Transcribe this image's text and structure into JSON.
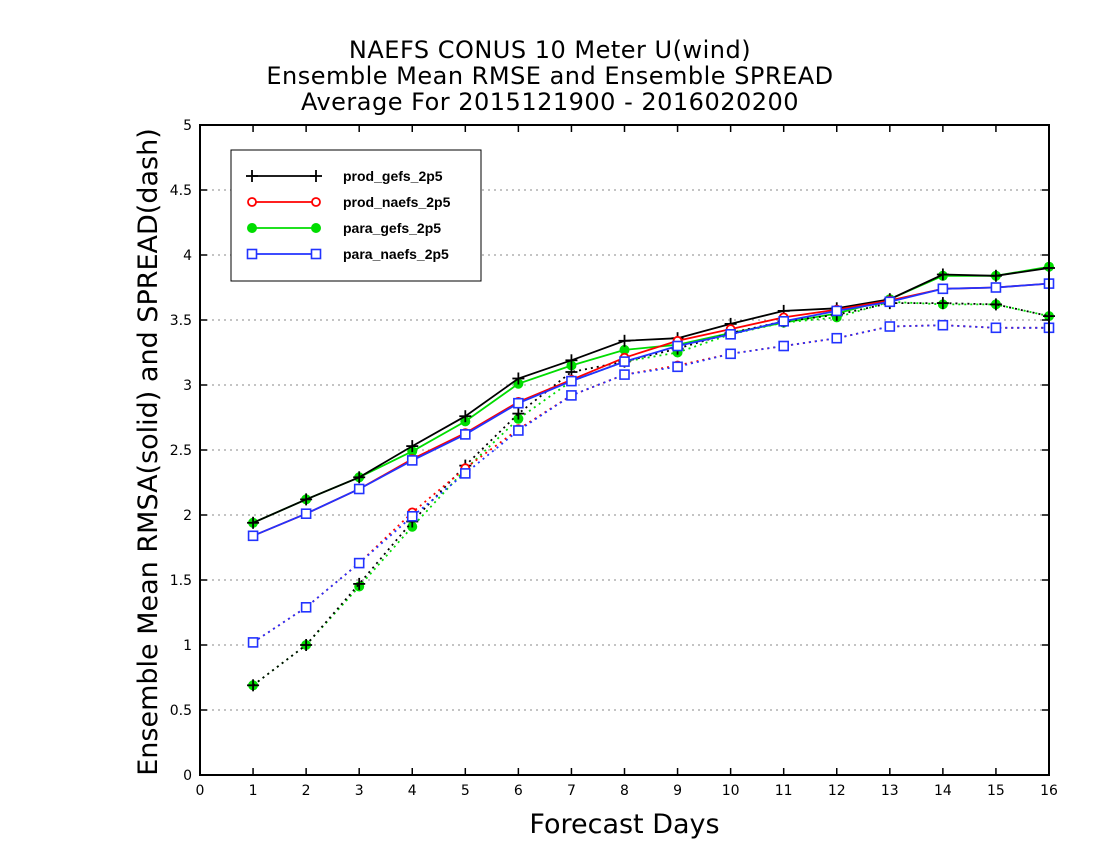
{
  "chart_data": {
    "type": "line",
    "title": [
      "NAEFS CONUS 10 Meter U(wind)",
      "Ensemble Mean RMSE and Ensemble SPREAD",
      "Average For 2015121900 - 2016020200"
    ],
    "xlabel": "Forecast Days",
    "ylabel": "Ensemble Mean RMSA(solid)  and  SPREAD(dash)",
    "xlim": [
      0,
      16
    ],
    "ylim": [
      0,
      5
    ],
    "x_ticks": [
      0,
      1,
      2,
      3,
      4,
      5,
      6,
      7,
      8,
      9,
      10,
      11,
      12,
      13,
      14,
      15,
      16
    ],
    "y_ticks": [
      "0",
      "0.5",
      "1",
      "1.5",
      "2",
      "2.5",
      "3",
      "3.5",
      "4",
      "4.5",
      "5"
    ],
    "y_tick_values": [
      0,
      0.5,
      1,
      1.5,
      2,
      2.5,
      3,
      3.5,
      4,
      4.5,
      5
    ],
    "grid": "horizontal dotted",
    "legend_position": "top-left",
    "x": [
      1,
      2,
      3,
      4,
      5,
      6,
      7,
      8,
      9,
      10,
      11,
      12,
      13,
      14,
      15,
      16
    ],
    "series": [
      {
        "name": "prod_gefs_2p5",
        "color": "#000000",
        "marker": "plus",
        "rmse": [
          1.94,
          2.12,
          2.29,
          2.53,
          2.76,
          3.05,
          3.19,
          3.34,
          3.36,
          3.47,
          3.57,
          3.59,
          3.66,
          3.85,
          3.84,
          3.9
        ],
        "spread": [
          0.69,
          1.0,
          1.47,
          1.95,
          2.38,
          2.78,
          3.1,
          3.18,
          3.28,
          3.4,
          3.49,
          3.54,
          3.63,
          3.63,
          3.62,
          3.53
        ]
      },
      {
        "name": "prod_naefs_2p5",
        "color": "#ff0000",
        "marker": "circle",
        "rmse": [
          1.84,
          2.01,
          2.2,
          2.43,
          2.63,
          2.87,
          3.04,
          3.21,
          3.34,
          3.43,
          3.52,
          3.58,
          3.65,
          3.74,
          3.75,
          3.78
        ],
        "spread": [
          1.02,
          1.29,
          1.63,
          2.02,
          2.36,
          2.66,
          2.92,
          3.08,
          3.15,
          3.24,
          3.3,
          3.36,
          3.45,
          3.46,
          3.44,
          3.44
        ]
      },
      {
        "name": "para_gefs_2p5",
        "color": "#00dd00",
        "marker": "dot",
        "rmse": [
          1.94,
          2.12,
          2.29,
          2.49,
          2.72,
          3.01,
          3.15,
          3.27,
          3.31,
          3.4,
          3.48,
          3.55,
          3.66,
          3.84,
          3.84,
          3.91
        ],
        "spread": [
          0.69,
          1.0,
          1.45,
          1.91,
          2.35,
          2.74,
          3.03,
          3.18,
          3.25,
          3.39,
          3.48,
          3.52,
          3.64,
          3.62,
          3.62,
          3.53
        ]
      },
      {
        "name": "para_naefs_2p5",
        "color": "#2233ff",
        "marker": "square",
        "rmse": [
          1.84,
          2.01,
          2.2,
          2.42,
          2.62,
          2.86,
          3.03,
          3.18,
          3.3,
          3.39,
          3.49,
          3.57,
          3.64,
          3.74,
          3.75,
          3.78
        ],
        "spread": [
          1.02,
          1.29,
          1.63,
          1.99,
          2.32,
          2.65,
          2.92,
          3.08,
          3.14,
          3.24,
          3.3,
          3.36,
          3.45,
          3.46,
          3.44,
          3.44
        ]
      }
    ]
  }
}
